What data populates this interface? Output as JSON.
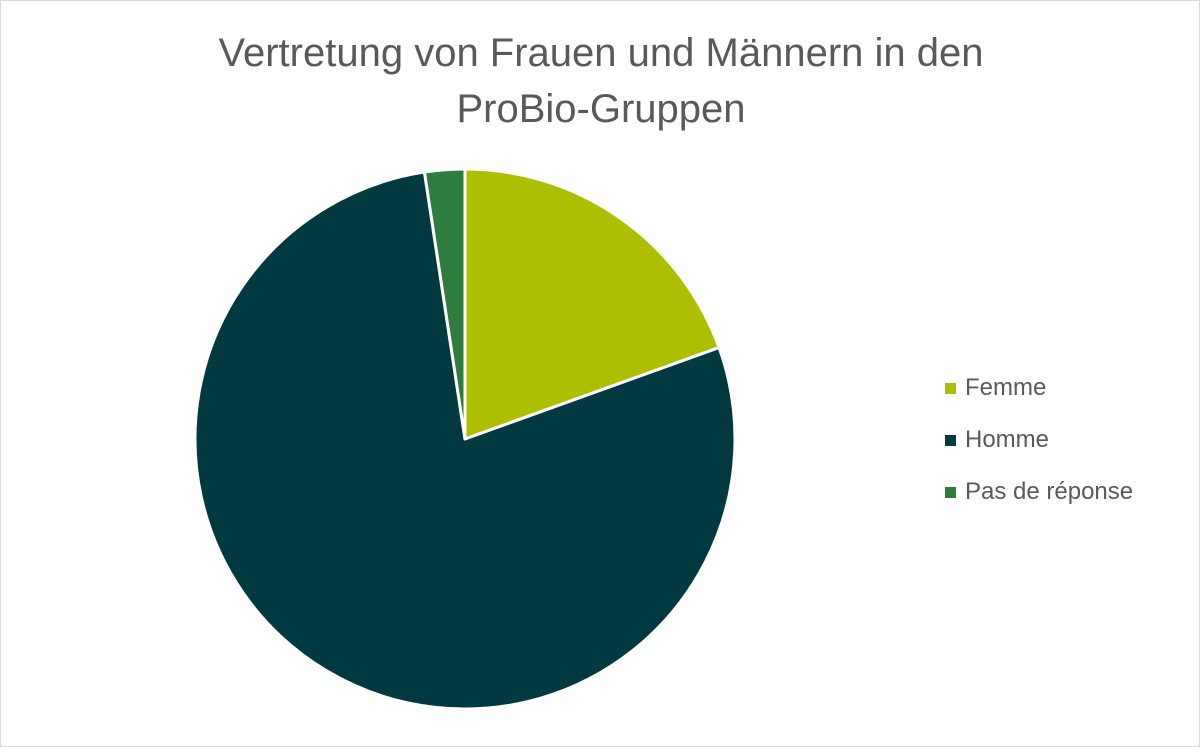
{
  "chart_data": {
    "type": "pie",
    "title": [
      "Vertretung von Frauen und Männern in den",
      "ProBio-Gruppen"
    ],
    "categories": [
      "Femme",
      "Homme",
      "Pas de réponse"
    ],
    "values": [
      19.5,
      78.1,
      2.4
    ],
    "unit": "%",
    "colors": [
      "#adbf00",
      "#003a40",
      "#2e7d3f"
    ],
    "start_angle_deg": 0,
    "direction": "clockwise",
    "legend_position": "right",
    "slice_border_color": "#ffffff"
  }
}
